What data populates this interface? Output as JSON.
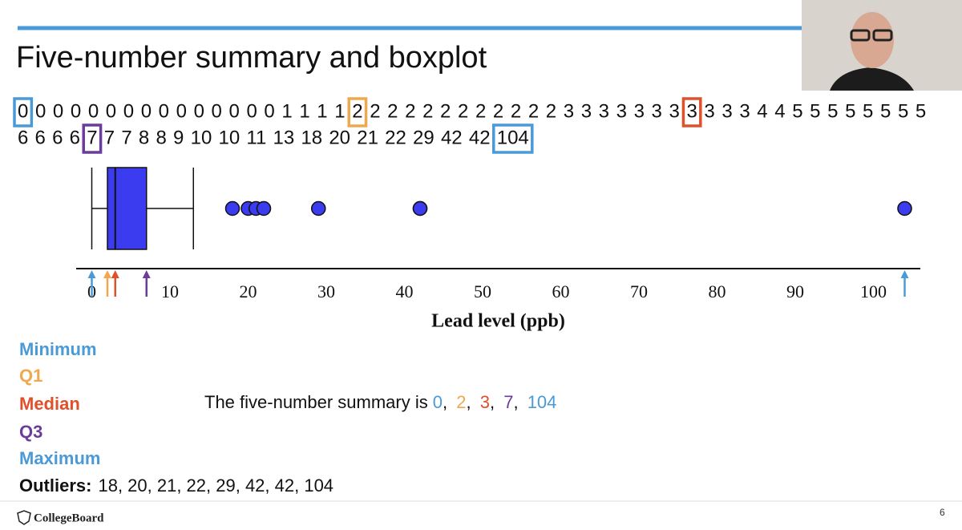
{
  "slide": {
    "title": "Five-number summary and boxplot",
    "values": [
      0,
      0,
      0,
      0,
      0,
      0,
      0,
      0,
      0,
      0,
      0,
      0,
      0,
      0,
      0,
      1,
      1,
      1,
      1,
      2,
      2,
      2,
      2,
      2,
      2,
      2,
      2,
      2,
      2,
      2,
      2,
      3,
      3,
      3,
      3,
      3,
      3,
      3,
      3,
      3,
      3,
      3,
      4,
      4,
      5,
      5,
      5,
      5,
      5,
      5,
      5,
      5,
      6,
      6,
      6,
      6,
      7,
      7,
      7,
      8,
      8,
      9,
      10,
      10,
      11,
      13,
      18,
      20,
      21,
      22,
      29,
      42,
      42,
      104
    ],
    "summary": {
      "items": [
        {
          "label": "Minimum",
          "value": 0,
          "color": "#4a9ad8"
        },
        {
          "label": "Q1",
          "value": 2,
          "color": "#f0a850"
        },
        {
          "label": "Median",
          "value": 3,
          "color": "#e0502a"
        },
        {
          "label": "Q3",
          "value": 7,
          "color": "#6a3d9a"
        },
        {
          "label": "Maximum",
          "value": 104,
          "color": "#4a9ad8"
        }
      ],
      "sentence": "The five-number summary is",
      "separator": ", "
    },
    "outliers_label": "Outliers:",
    "outliers_text": "18, 20, 21, 22, 29, 42, 42, 104",
    "footer": "CollegeBoard",
    "page_number": "6"
  },
  "chart_data": {
    "type": "box",
    "whisker_low": 0,
    "q1": 2,
    "median": 3,
    "q3": 7,
    "whisker_high": 13,
    "outliers": [
      18,
      20,
      21,
      22,
      29,
      42,
      42,
      104
    ],
    "color": "#3b3bf0",
    "xlim": [
      -2,
      106
    ],
    "xticks": [
      0,
      10,
      20,
      30,
      40,
      50,
      60,
      70,
      80,
      90,
      100
    ],
    "xlabel": "Lead level (ppb)"
  }
}
